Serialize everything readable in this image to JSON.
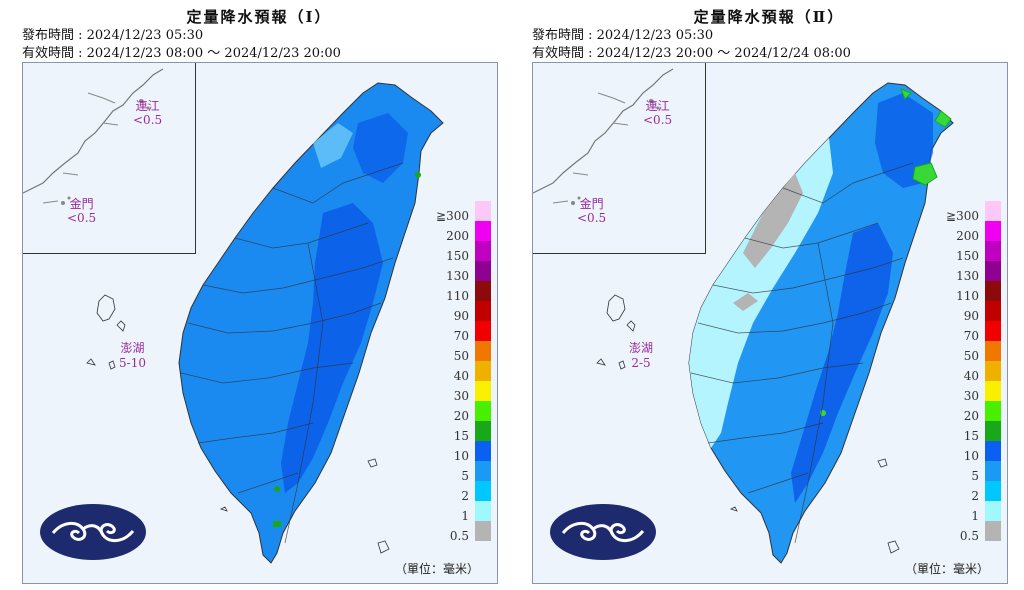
{
  "panels": [
    {
      "title": "定量降水預報（Ⅰ）",
      "issued": "發布時間 : 2024/12/23 05:30",
      "valid": "有效時間 : 2024/12/23 08:00 ～ 2024/12/23 20:00",
      "matsu": {
        "name": "連江",
        "value": "<0.5"
      },
      "kinmen": {
        "name": "金門",
        "value": "<0.5"
      },
      "penghu": {
        "name": "澎湖",
        "value": "5-10"
      }
    },
    {
      "title": "定量降水預報（Ⅱ）",
      "issued": "發布時間 : 2024/12/23 05:30",
      "valid": "有效時間 : 2024/12/23 20:00 ～ 2024/12/24 08:00",
      "matsu": {
        "name": "連江",
        "value": "<0.5"
      },
      "kinmen": {
        "name": "金門",
        "value": "<0.5"
      },
      "penghu": {
        "name": "澎湖",
        "value": "2-5"
      }
    }
  ],
  "unit": "（單位：毫米）",
  "legend": {
    "base_label": "0.5",
    "items": [
      {
        "label": "≧300",
        "color": "#fbc8f8"
      },
      {
        "label": "200",
        "color": "#f000f0"
      },
      {
        "label": "150",
        "color": "#c000c0"
      },
      {
        "label": "130",
        "color": "#900090"
      },
      {
        "label": "110",
        "color": "#8c0a0a"
      },
      {
        "label": "90",
        "color": "#c00000"
      },
      {
        "label": "70",
        "color": "#f00000"
      },
      {
        "label": "50",
        "color": "#f07800"
      },
      {
        "label": "40",
        "color": "#f0b000"
      },
      {
        "label": "30",
        "color": "#f8f000"
      },
      {
        "label": "20",
        "color": "#48f000"
      },
      {
        "label": "15",
        "color": "#18a818"
      },
      {
        "label": "10",
        "color": "#0a60f0"
      },
      {
        "label": "5",
        "color": "#1a9af5"
      },
      {
        "label": "2",
        "color": "#00c8ff"
      },
      {
        "label": "1",
        "color": "#a0f8ff"
      },
      {
        "label": "0.5",
        "color": "#b4b4b4"
      }
    ]
  },
  "colors": {
    "land_panel1": "#1a8af0",
    "land_panel2": "#2196f3",
    "deep_blue": "#0a5ae8",
    "light_cyan": "#b4f4ff",
    "gray": "#b4b4b4",
    "green": "#38d838",
    "label_purple": "#9a2a9a"
  }
}
